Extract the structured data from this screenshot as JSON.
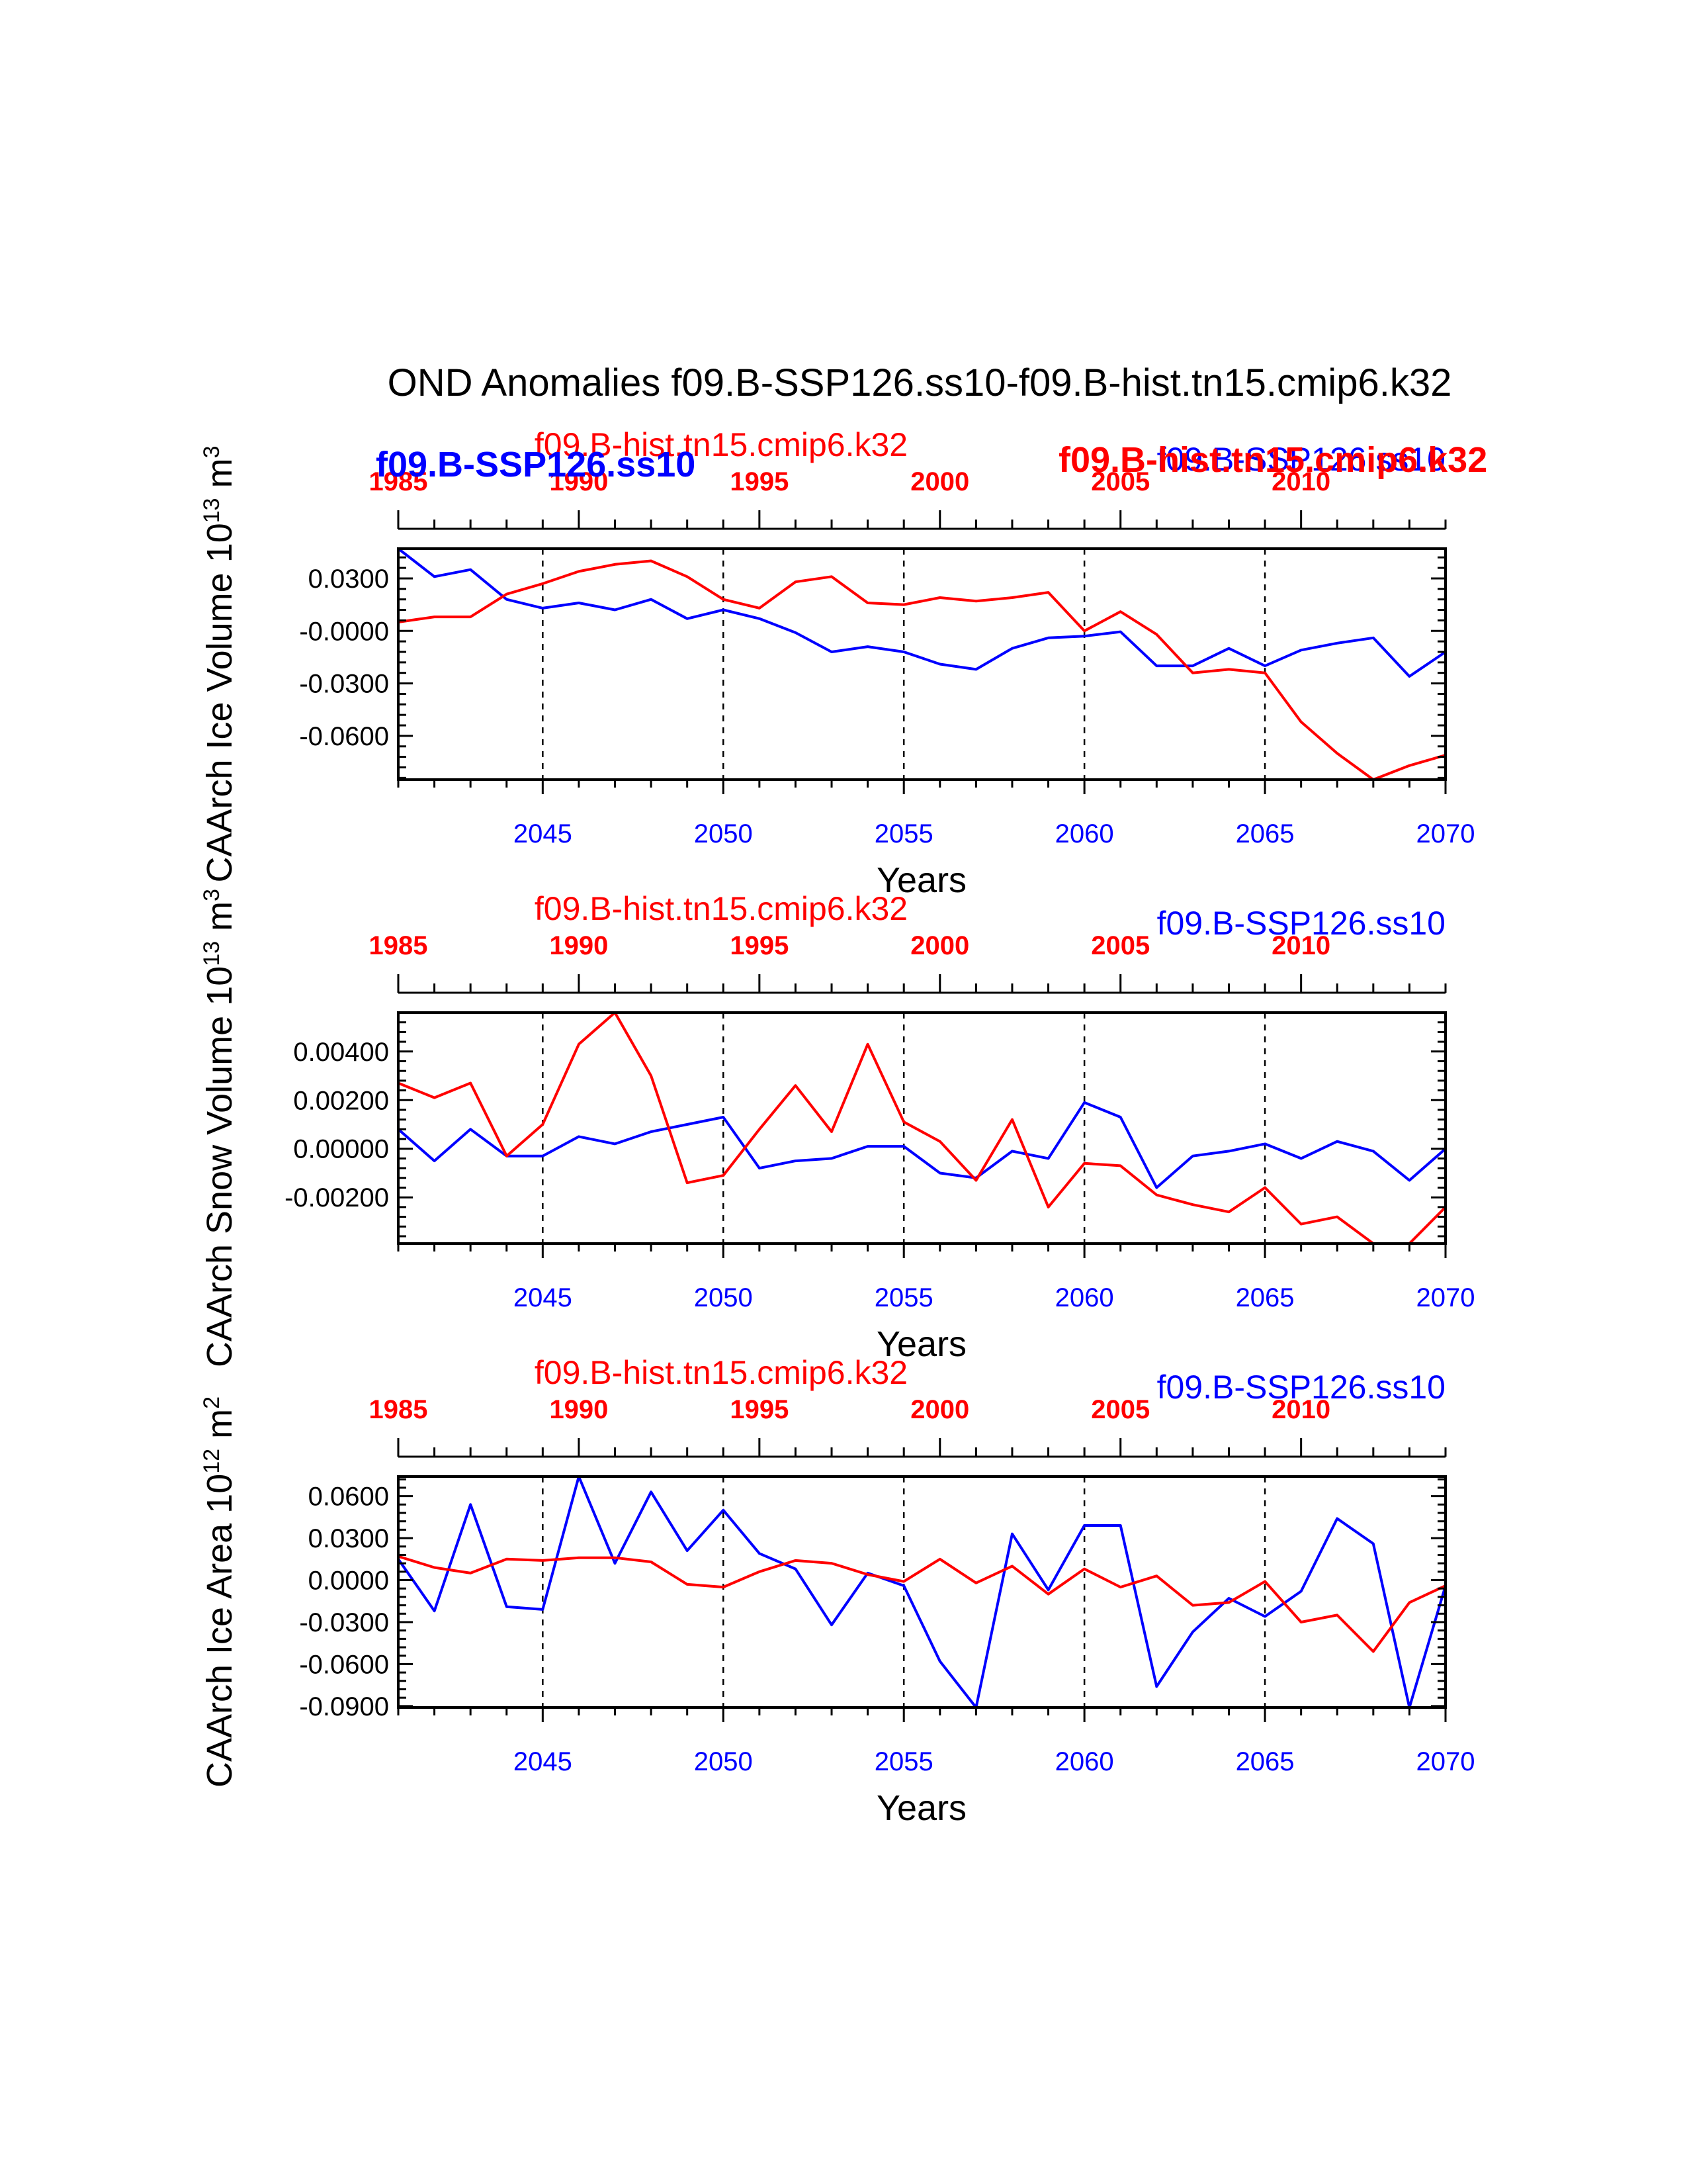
{
  "title": "OND Anomalies f09.B-SSP126.ss10-f09.B-hist.tn15.cmip6.k32",
  "overlay_labels": {
    "blue_bold": "f09.B-SSP126.ss10",
    "red_bold": "f09.B-hist.tn15.cmip6.k32"
  },
  "chart_data": [
    {
      "type": "line",
      "panel": "ice-volume",
      "ylabel": "CAArch Ice Volume 10^13 m^3",
      "ylabel_main": "CAArch Ice Volume 10",
      "ylabel_exp": "13",
      "ylabel_unit": " m",
      "ylabel_unit_exp": "3",
      "xlabel": "Years",
      "ylim": [
        -0.085,
        0.047
      ],
      "yticks": [
        0.03,
        0.0,
        -0.03,
        -0.06
      ],
      "ytick_labels": [
        "0.0300",
        "-0.0000",
        "-0.0300",
        "-0.0600"
      ],
      "x_bottom": {
        "lim": [
          2041,
          2070
        ],
        "ticks": [
          2045,
          2050,
          2055,
          2060,
          2065,
          2070
        ],
        "color": "#0000ff"
      },
      "x_top": {
        "lim": [
          1985,
          2014
        ],
        "ticks": [
          1985,
          1990,
          1995,
          2000,
          2005,
          2010
        ],
        "color": "#ff0000"
      },
      "gridlines_x": [
        2045,
        2050,
        2055,
        2060,
        2065
      ],
      "top_left_label": "f09.B-hist.tn15.cmip6.k32",
      "top_right_label": "f09.B-SSP126.ss10",
      "series": [
        {
          "name": "f09.B-SSP126.ss10",
          "color": "#0000ff",
          "x_start": 2041,
          "values": [
            0.047,
            0.031,
            0.035,
            0.018,
            0.013,
            0.016,
            0.012,
            0.018,
            0.007,
            0.012,
            0.007,
            -0.001,
            -0.012,
            -0.009,
            -0.012,
            -0.019,
            -0.022,
            -0.01,
            -0.004,
            -0.003,
            -0.0005,
            -0.02,
            -0.02,
            -0.01,
            -0.02,
            -0.011,
            -0.007,
            -0.004,
            -0.026,
            -0.012
          ]
        },
        {
          "name": "f09.B-hist.tn15.cmip6.k32",
          "color": "#ff0000",
          "x_start": 2041,
          "values": [
            0.005,
            0.008,
            0.008,
            0.021,
            0.027,
            0.034,
            0.038,
            0.04,
            0.031,
            0.018,
            0.013,
            0.028,
            0.031,
            0.016,
            0.015,
            0.019,
            0.017,
            0.019,
            0.022,
            0.0,
            0.011,
            -0.002,
            -0.024,
            -0.022,
            -0.024,
            -0.052,
            -0.07,
            -0.085,
            -0.077,
            -0.071
          ]
        }
      ]
    },
    {
      "type": "line",
      "panel": "snow-volume",
      "ylabel": "CAArch Snow Volume 10^13 m^3",
      "ylabel_main": "CAArch Snow Volume 10",
      "ylabel_exp": "13",
      "ylabel_unit": " m",
      "ylabel_unit_exp": "3",
      "xlabel": "Years",
      "ylim": [
        -0.0039,
        0.0056
      ],
      "yticks": [
        0.004,
        0.002,
        0.0,
        -0.002
      ],
      "ytick_labels": [
        "0.00400",
        "0.00200",
        "0.00000",
        "-0.00200"
      ],
      "x_bottom": {
        "lim": [
          2041,
          2070
        ],
        "ticks": [
          2045,
          2050,
          2055,
          2060,
          2065,
          2070
        ],
        "color": "#0000ff"
      },
      "x_top": {
        "lim": [
          1985,
          2014
        ],
        "ticks": [
          1985,
          1990,
          1995,
          2000,
          2005,
          2010
        ],
        "color": "#ff0000"
      },
      "gridlines_x": [
        2045,
        2050,
        2055,
        2060,
        2065
      ],
      "top_left_label": "f09.B-hist.tn15.cmip6.k32",
      "top_right_label": "f09.B-SSP126.ss10",
      "series": [
        {
          "name": "f09.B-SSP126.ss10",
          "color": "#0000ff",
          "x_start": 2041,
          "values": [
            0.0008,
            -0.0005,
            0.0008,
            -0.0003,
            -0.0003,
            0.0005,
            0.0002,
            0.0007,
            0.001,
            0.0013,
            -0.0008,
            -0.0005,
            -0.0004,
            0.0001,
            0.0001,
            -0.001,
            -0.0012,
            -0.0001,
            -0.0004,
            0.0019,
            0.0013,
            -0.0016,
            -0.0003,
            -0.0001,
            0.0002,
            -0.0004,
            0.0003,
            -0.0001,
            -0.0013,
            0.0
          ]
        },
        {
          "name": "f09.B-hist.tn15.cmip6.k32",
          "color": "#ff0000",
          "x_start": 2041,
          "values": [
            0.0027,
            0.0021,
            0.0027,
            -0.0003,
            0.001,
            0.0043,
            0.0056,
            0.003,
            -0.0014,
            -0.0011,
            0.0008,
            0.0026,
            0.0007,
            0.0043,
            0.0011,
            0.0003,
            -0.0013,
            0.0012,
            -0.0024,
            -0.0006,
            -0.0007,
            -0.0019,
            -0.0023,
            -0.0026,
            -0.0016,
            -0.0031,
            -0.0028,
            -0.0039,
            -0.0039,
            -0.0024
          ]
        }
      ]
    },
    {
      "type": "line",
      "panel": "ice-area",
      "ylabel": "CAArch Ice Area 10^12 m^2",
      "ylabel_main": "CAArch Ice Area 10",
      "ylabel_exp": "12",
      "ylabel_unit": " m",
      "ylabel_unit_exp": "2",
      "xlabel": "Years",
      "ylim": [
        -0.091,
        0.074
      ],
      "yticks": [
        0.06,
        0.03,
        0.0,
        -0.03,
        -0.06,
        -0.09
      ],
      "ytick_labels": [
        "0.0600",
        "0.0300",
        "0.0000",
        "-0.0300",
        "-0.0600",
        "-0.0900"
      ],
      "x_bottom": {
        "lim": [
          2041,
          2070
        ],
        "ticks": [
          2045,
          2050,
          2055,
          2060,
          2065,
          2070
        ],
        "color": "#0000ff"
      },
      "x_top": {
        "lim": [
          1985,
          2014
        ],
        "ticks": [
          1985,
          1990,
          1995,
          2000,
          2005,
          2010
        ],
        "color": "#ff0000"
      },
      "gridlines_x": [
        2045,
        2050,
        2055,
        2060,
        2065
      ],
      "top_left_label": "f09.B-hist.tn15.cmip6.k32",
      "top_right_label": "f09.B-SSP126.ss10",
      "series": [
        {
          "name": "f09.B-SSP126.ss10",
          "color": "#0000ff",
          "x_start": 2041,
          "values": [
            0.015,
            -0.022,
            0.054,
            -0.019,
            -0.021,
            0.074,
            0.012,
            0.063,
            0.021,
            0.05,
            0.019,
            0.008,
            -0.032,
            0.005,
            -0.004,
            -0.058,
            -0.091,
            0.033,
            -0.007,
            0.039,
            0.039,
            -0.076,
            -0.037,
            -0.013,
            -0.026,
            -0.008,
            0.044,
            0.026,
            -0.091,
            -0.004
          ]
        },
        {
          "name": "f09.B-hist.tn15.cmip6.k32",
          "color": "#ff0000",
          "x_start": 2041,
          "values": [
            0.017,
            0.009,
            0.005,
            0.015,
            0.014,
            0.016,
            0.016,
            0.013,
            -0.003,
            -0.005,
            0.006,
            0.014,
            0.012,
            0.004,
            -0.001,
            0.015,
            -0.002,
            0.01,
            -0.01,
            0.008,
            -0.005,
            0.003,
            -0.018,
            -0.016,
            -0.001,
            -0.03,
            -0.025,
            -0.051,
            -0.016,
            -0.004
          ]
        }
      ]
    }
  ]
}
